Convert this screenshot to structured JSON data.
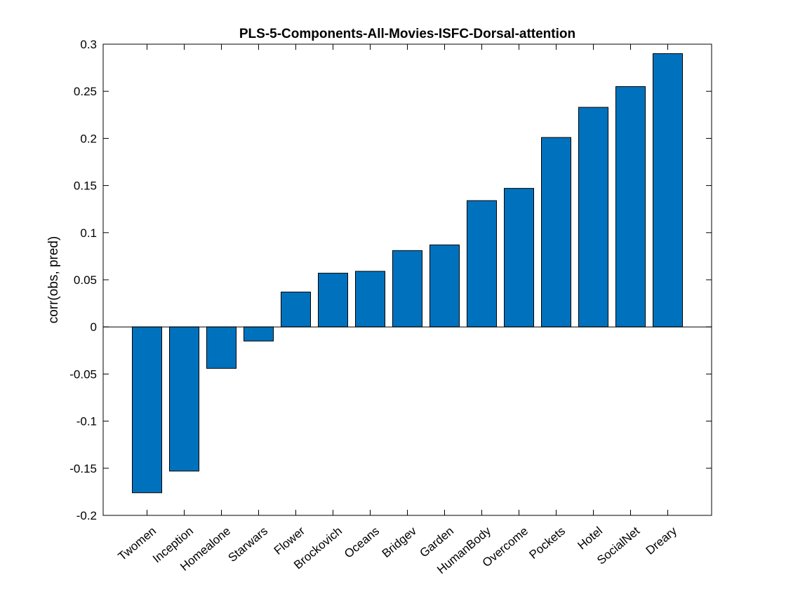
{
  "chart_data": {
    "type": "bar",
    "title": "PLS-5-Components-All-Movies-ISFC-Dorsal-attention",
    "xlabel": "",
    "ylabel": "corr(obs, pred)",
    "ylim": [
      -0.2,
      0.3
    ],
    "yticks": [
      -0.2,
      -0.15,
      -0.1,
      -0.05,
      0,
      0.05,
      0.1,
      0.15,
      0.2,
      0.25,
      0.3
    ],
    "ytick_labels": [
      "-0.2",
      "-0.15",
      "-0.1",
      "-0.05",
      "0",
      "0.05",
      "0.1",
      "0.15",
      "0.2",
      "0.25",
      "0.3"
    ],
    "categories": [
      "Twomen",
      "Inception",
      "Homealone",
      "Starwars",
      "Flower",
      "Brockovich",
      "Oceans",
      "Bridgev",
      "Garden",
      "HumanBody",
      "Overcome",
      "Pockets",
      "Hotel",
      "SocialNet",
      "Dreary"
    ],
    "values": [
      -0.176,
      -0.153,
      -0.044,
      -0.015,
      0.037,
      0.057,
      0.059,
      0.081,
      0.087,
      0.134,
      0.147,
      0.201,
      0.233,
      0.255,
      0.29
    ],
    "bar_color": "#0072bd",
    "grid": false,
    "legend": "none"
  }
}
